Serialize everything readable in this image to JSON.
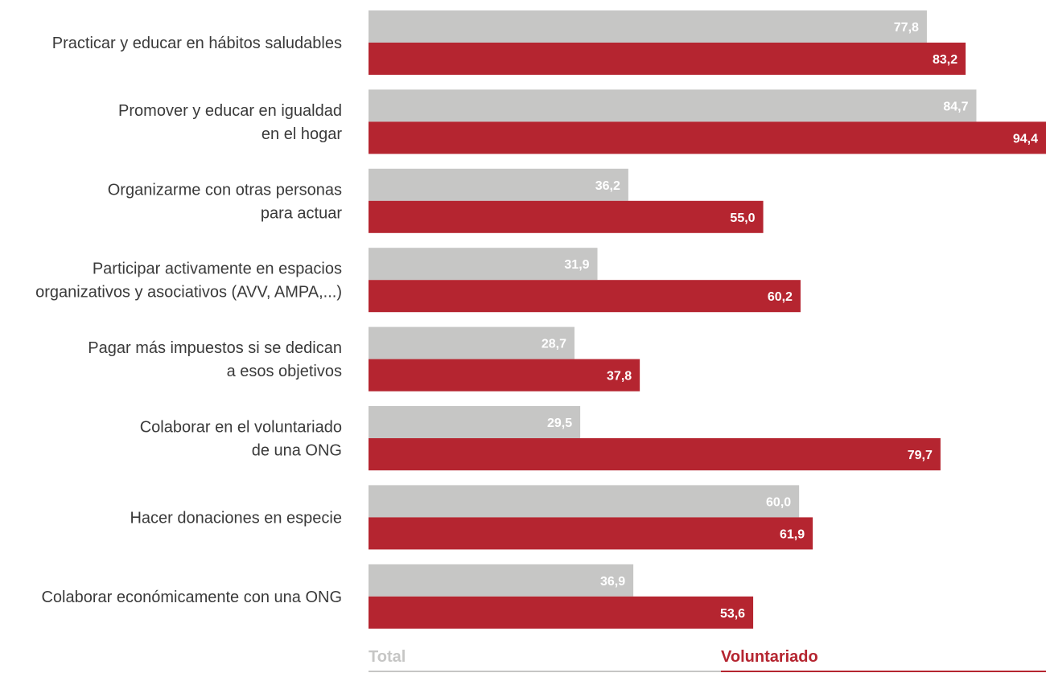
{
  "colors": {
    "total": "#c6c6c5",
    "voluntariado": "#b52530",
    "label_text": "#3a3a3a",
    "value_text": "#ffffff"
  },
  "legend": {
    "total_label": "Total",
    "voluntariado_label": "Voluntariado"
  },
  "chart_data": {
    "type": "bar",
    "orientation": "horizontal",
    "categories": [
      [
        "Practicar y educar en hábitos saludables"
      ],
      [
        "Promover y educar en igualdad",
        "en el hogar"
      ],
      [
        "Organizarme con otras personas",
        "para  actuar"
      ],
      [
        "Participar activamente en espacios",
        "organizativos y asociativos (AVV, AMPA,...)"
      ],
      [
        "Pagar más impuestos si se dedican",
        "a esos objetivos"
      ],
      [
        "Colaborar en el voluntariado",
        "de una ONG"
      ],
      [
        "Hacer donaciones en especie"
      ],
      [
        "Colaborar económicamente con una ONG"
      ]
    ],
    "series": [
      {
        "name": "Total",
        "values": [
          77.8,
          84.7,
          36.2,
          31.9,
          28.7,
          29.5,
          60.0,
          36.9
        ],
        "labels": [
          "77,8",
          "84,7",
          "36,2",
          "31,9",
          "28,7",
          "29,5",
          "60,0",
          "36,9"
        ]
      },
      {
        "name": "Voluntariado",
        "values": [
          83.2,
          94.4,
          55.0,
          60.2,
          37.8,
          79.7,
          61.9,
          53.6
        ],
        "labels": [
          "83,2",
          "94,4",
          "55,0",
          "60,2",
          "37,8",
          "79,7",
          "61,9",
          "53,6"
        ]
      }
    ],
    "xlim": [
      0,
      94.4
    ],
    "grid": false,
    "legend_position": "bottom"
  }
}
